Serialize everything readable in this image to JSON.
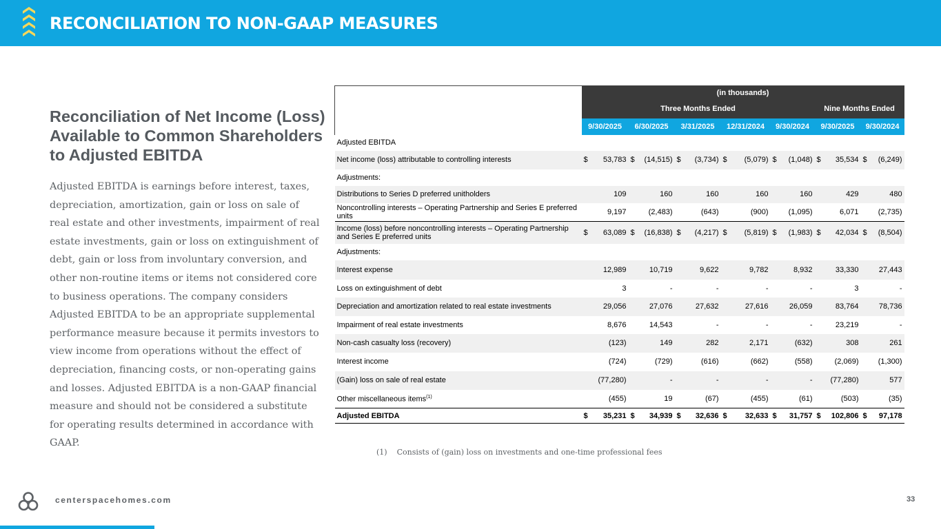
{
  "header": {
    "title": "RECONCILIATION TO NON-GAAP MEASURES"
  },
  "subheading": "Reconciliation of Net Income (Loss) Available to Common Shareholders to Adjusted EBITDA",
  "description": "Adjusted EBITDA is earnings before interest, taxes, depreciation, amortization, gain or loss on sale of real estate and other investments, impairment of real estate investments, gain or loss on extinguishment of debt, gain or loss from involuntary conversion, and other non-routine items or items not considered core to business operations. The company considers Adjusted EBITDA to be an appropriate supplemental performance measure because it permits investors to view income from operations without the effect of depreciation, financing costs, or non-operating gains and losses. Adjusted EBITDA is a non-GAAP financial measure and should not be considered a substitute for operating results determined in accordance with GAAP.",
  "table": {
    "units": "(in thousands)",
    "group_three": "Three Months Ended",
    "group_nine": "Nine Months Ended",
    "columns": [
      "9/30/2025",
      "6/30/2025",
      "3/31/2025",
      "12/31/2024",
      "9/30/2024",
      "9/30/2025",
      "9/30/2024"
    ],
    "rows": [
      {
        "label": "Adjusted EBITDA",
        "values": [
          "",
          "",
          "",
          "",
          "",
          "",
          ""
        ],
        "dollar": false,
        "shade": false,
        "sep": false,
        "bold": false
      },
      {
        "label": "Net income (loss) attributable to controlling interests",
        "values": [
          "53,783",
          "(14,515)",
          "(3,734)",
          "(5,079)",
          "(1,048)",
          "35,534",
          "(6,249)"
        ],
        "dollar": true,
        "shade": true,
        "sep": false,
        "bold": false
      },
      {
        "label": "Adjustments:",
        "values": [
          "",
          "",
          "",
          "",
          "",
          "",
          ""
        ],
        "dollar": false,
        "shade": false,
        "sep": false,
        "bold": false
      },
      {
        "label": "Distributions to Series D preferred unitholders",
        "values": [
          "109",
          "160",
          "160",
          "160",
          "160",
          "429",
          "480"
        ],
        "dollar": false,
        "shade": true,
        "sep": false,
        "bold": false
      },
      {
        "label": "Noncontrolling interests – Operating Partnership and Series E preferred units",
        "values": [
          "9,197",
          "(2,483)",
          "(643)",
          "(900)",
          "(1,095)",
          "6,071",
          "(2,735)"
        ],
        "dollar": false,
        "shade": false,
        "sep": false,
        "bold": false
      },
      {
        "label": "Income (loss) before noncontrolling interests – Operating Partnership and Series E preferred units",
        "values": [
          "63,089",
          "(16,838)",
          "(4,217)",
          "(5,819)",
          "(1,983)",
          "42,034",
          "(8,504)"
        ],
        "dollar": true,
        "shade": true,
        "sep": true,
        "bold": false
      },
      {
        "label": "Adjustments:",
        "values": [
          "",
          "",
          "",
          "",
          "",
          "",
          ""
        ],
        "dollar": false,
        "shade": false,
        "sep": false,
        "bold": false
      },
      {
        "label": "Interest expense",
        "values": [
          "12,989",
          "10,719",
          "9,622",
          "9,782",
          "8,932",
          "33,330",
          "27,443"
        ],
        "dollar": false,
        "shade": true,
        "sep": false,
        "bold": false
      },
      {
        "label": "Loss on extinguishment of debt",
        "values": [
          "3",
          "-",
          "-",
          "-",
          "-",
          "3",
          "-"
        ],
        "dollar": false,
        "shade": false,
        "sep": false,
        "bold": false
      },
      {
        "label": "Depreciation and amortization related to real estate investments",
        "values": [
          "29,056",
          "27,076",
          "27,632",
          "27,616",
          "26,059",
          "83,764",
          "78,736"
        ],
        "dollar": false,
        "shade": true,
        "sep": false,
        "bold": false
      },
      {
        "label": "Impairment of real estate investments",
        "values": [
          "8,676",
          "14,543",
          "-",
          "-",
          "-",
          "23,219",
          "-"
        ],
        "dollar": false,
        "shade": false,
        "sep": false,
        "bold": false
      },
      {
        "label": "Non-cash casualty loss (recovery)",
        "values": [
          "(123)",
          "149",
          "282",
          "2,171",
          "(632)",
          "308",
          "261"
        ],
        "dollar": false,
        "shade": true,
        "sep": false,
        "bold": false
      },
      {
        "label": "Interest income",
        "values": [
          "(724)",
          "(729)",
          "(616)",
          "(662)",
          "(558)",
          "(2,069)",
          "(1,300)"
        ],
        "dollar": false,
        "shade": false,
        "sep": false,
        "bold": false
      },
      {
        "label": "(Gain) loss on sale of real estate",
        "values": [
          "(77,280)",
          "-",
          "-",
          "-",
          "-",
          "(77,280)",
          "577"
        ],
        "dollar": false,
        "shade": true,
        "sep": false,
        "bold": false
      },
      {
        "label": "Other miscellaneous items",
        "footnote_ref": "(1)",
        "values": [
          "(455)",
          "19",
          "(67)",
          "(455)",
          "(61)",
          "(503)",
          "(35)"
        ],
        "dollar": false,
        "shade": false,
        "sep": false,
        "bold": false
      },
      {
        "label": "Adjusted EBITDA",
        "values": [
          "35,231",
          "34,939",
          "32,636",
          "32,633",
          "31,757",
          "102,806",
          "97,178"
        ],
        "dollar": true,
        "shade": false,
        "sep": false,
        "bold": true
      }
    ],
    "currency_symbol": "$"
  },
  "footnote": {
    "marker": "(1)",
    "text": "Consists of (gain) loss on investments and one-time professional fees"
  },
  "footer": {
    "website": "centerspacehomes.com",
    "page_number": "33"
  },
  "colors": {
    "accent": "#10a6e0",
    "header_dark": "#3a3a3a",
    "chevron": "#f6d75a",
    "text_gray": "#5e6266"
  }
}
